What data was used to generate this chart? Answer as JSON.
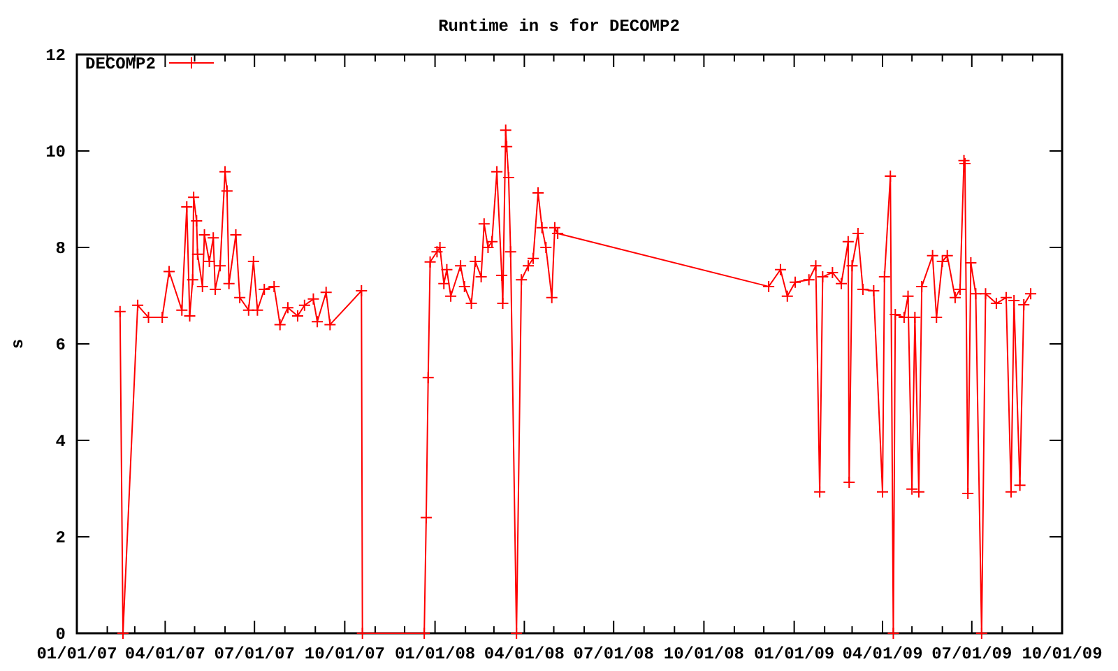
{
  "chart_data": {
    "type": "line",
    "title": "Runtime in s for DECOMP2",
    "ylabel": "s",
    "legend": "top left",
    "marker": "cross",
    "line_style": "solid",
    "grid": false,
    "xlim": [
      "2007-01-01",
      "2009-10-01"
    ],
    "ylim": [
      0,
      12
    ],
    "yticks": [
      0,
      2,
      4,
      6,
      8,
      10,
      12
    ],
    "xticks": [
      {
        "value": "2007-01-01",
        "label": "01/01/07"
      },
      {
        "value": "2007-02-01",
        "label": null
      },
      {
        "value": "2007-03-01",
        "label": null
      },
      {
        "value": "2007-04-01",
        "label": "04/01/07"
      },
      {
        "value": "2007-05-01",
        "label": null
      },
      {
        "value": "2007-06-01",
        "label": null
      },
      {
        "value": "2007-07-01",
        "label": "07/01/07"
      },
      {
        "value": "2007-08-01",
        "label": null
      },
      {
        "value": "2007-09-01",
        "label": null
      },
      {
        "value": "2007-10-01",
        "label": "10/01/07"
      },
      {
        "value": "2007-11-01",
        "label": null
      },
      {
        "value": "2007-12-01",
        "label": null
      },
      {
        "value": "2008-01-01",
        "label": "01/01/08"
      },
      {
        "value": "2008-02-01",
        "label": null
      },
      {
        "value": "2008-03-01",
        "label": null
      },
      {
        "value": "2008-04-01",
        "label": "04/01/08"
      },
      {
        "value": "2008-05-01",
        "label": null
      },
      {
        "value": "2008-06-01",
        "label": null
      },
      {
        "value": "2008-07-01",
        "label": "07/01/08"
      },
      {
        "value": "2008-08-01",
        "label": null
      },
      {
        "value": "2008-09-01",
        "label": null
      },
      {
        "value": "2008-10-01",
        "label": "10/01/08"
      },
      {
        "value": "2008-11-01",
        "label": null
      },
      {
        "value": "2008-12-01",
        "label": null
      },
      {
        "value": "2009-01-01",
        "label": "01/01/09"
      },
      {
        "value": "2009-02-01",
        "label": null
      },
      {
        "value": "2009-03-01",
        "label": null
      },
      {
        "value": "2009-04-01",
        "label": "04/01/09"
      },
      {
        "value": "2009-05-01",
        "label": null
      },
      {
        "value": "2009-06-01",
        "label": null
      },
      {
        "value": "2009-07-01",
        "label": "07/01/09"
      },
      {
        "value": "2009-08-01",
        "label": null
      },
      {
        "value": "2009-09-01",
        "label": null
      },
      {
        "value": "2009-10-01",
        "label": "10/01/09"
      }
    ],
    "x": [
      "2007-02-14",
      "2007-02-17",
      "2007-03-04",
      "2007-03-15",
      "2007-03-29",
      "2007-04-05",
      "2007-04-18",
      "2007-04-23",
      "2007-04-26",
      "2007-04-29",
      "2007-04-30",
      "2007-05-03",
      "2007-05-04",
      "2007-05-09",
      "2007-05-11",
      "2007-05-16",
      "2007-05-20",
      "2007-05-22",
      "2007-05-27",
      "2007-06-01",
      "2007-06-03",
      "2007-06-05",
      "2007-06-12",
      "2007-06-16",
      "2007-06-25",
      "2007-06-30",
      "2007-07-04",
      "2007-07-11",
      "2007-07-21",
      "2007-07-27",
      "2007-08-04",
      "2007-08-14",
      "2007-08-21",
      "2007-08-30",
      "2007-09-03",
      "2007-09-12",
      "2007-09-16",
      "2007-10-18",
      "2007-10-19",
      "2007-12-21",
      "2007-12-23",
      "2007-12-25",
      "2007-12-27",
      "2008-01-03",
      "2008-01-06",
      "2008-01-10",
      "2008-01-13",
      "2008-01-17",
      "2008-01-27",
      "2008-01-31",
      "2008-02-07",
      "2008-02-11",
      "2008-02-17",
      "2008-02-20",
      "2008-02-24",
      "2008-02-28",
      "2008-03-04",
      "2008-03-09",
      "2008-03-10",
      "2008-03-13",
      "2008-03-14",
      "2008-03-16",
      "2008-03-18",
      "2008-03-24",
      "2008-03-29",
      "2008-04-05",
      "2008-04-10",
      "2008-04-15",
      "2008-04-19",
      "2008-04-23",
      "2008-04-29",
      "2008-05-02",
      "2008-05-05",
      "2008-12-06",
      "2008-12-18",
      "2008-12-25",
      "2009-01-02",
      "2009-01-16",
      "2009-01-23",
      "2009-01-27",
      "2009-01-30",
      "2009-02-09",
      "2009-02-18",
      "2009-02-25",
      "2009-02-26",
      "2009-03-01",
      "2009-03-07",
      "2009-03-12",
      "2009-03-23",
      "2009-04-01",
      "2009-04-03",
      "2009-04-09",
      "2009-04-12",
      "2009-04-14",
      "2009-04-23",
      "2009-04-27",
      "2009-05-01",
      "2009-05-04",
      "2009-05-08",
      "2009-05-11",
      "2009-05-22",
      "2009-05-26",
      "2009-06-01",
      "2009-06-06",
      "2009-06-14",
      "2009-06-19",
      "2009-06-23",
      "2009-06-24",
      "2009-06-27",
      "2009-06-30",
      "2009-07-05",
      "2009-07-11",
      "2009-07-15",
      "2009-07-26",
      "2009-08-05",
      "2009-08-10",
      "2009-08-13",
      "2009-08-19",
      "2009-08-23",
      "2009-08-30"
    ],
    "series": [
      {
        "name": "DECOMP2",
        "color": "#ff0000",
        "values": [
          6.67,
          0,
          6.8,
          6.55,
          6.55,
          7.5,
          6.7,
          8.84,
          6.58,
          7.33,
          9.04,
          8.55,
          7.86,
          7.19,
          8.26,
          7.71,
          8.2,
          7.13,
          7.62,
          9.57,
          9.17,
          7.25,
          8.26,
          6.96,
          6.7,
          7.71,
          6.7,
          7.13,
          7.19,
          6.4,
          6.75,
          6.58,
          6.8,
          6.93,
          6.46,
          7.07,
          6.4,
          7.1,
          0,
          0,
          2.4,
          5.3,
          7.7,
          7.91,
          8.0,
          7.25,
          7.54,
          6.99,
          7.62,
          7.19,
          6.84,
          7.71,
          7.39,
          8.49,
          8.0,
          8.12,
          9.57,
          7.42,
          6.84,
          10.43,
          10.09,
          9.45,
          7.91,
          0,
          7.33,
          7.62,
          7.77,
          9.13,
          8.41,
          8.0,
          6.96,
          8.41,
          8.29,
          7.19,
          7.54,
          6.99,
          7.28,
          7.33,
          7.62,
          2.93,
          7.39,
          7.48,
          7.25,
          8.12,
          3.13,
          7.62,
          8.29,
          7.13,
          7.1,
          2.93,
          7.39,
          9.48,
          0,
          6.61,
          6.55,
          6.99,
          2.99,
          6.55,
          2.93,
          7.19,
          7.83,
          6.55,
          7.71,
          7.83,
          6.96,
          7.13,
          9.8,
          9.74,
          2.9,
          7.68,
          7.04,
          0,
          7.04,
          6.84,
          6.96,
          2.93,
          6.9,
          3.07,
          6.81,
          7.04
        ]
      }
    ]
  }
}
